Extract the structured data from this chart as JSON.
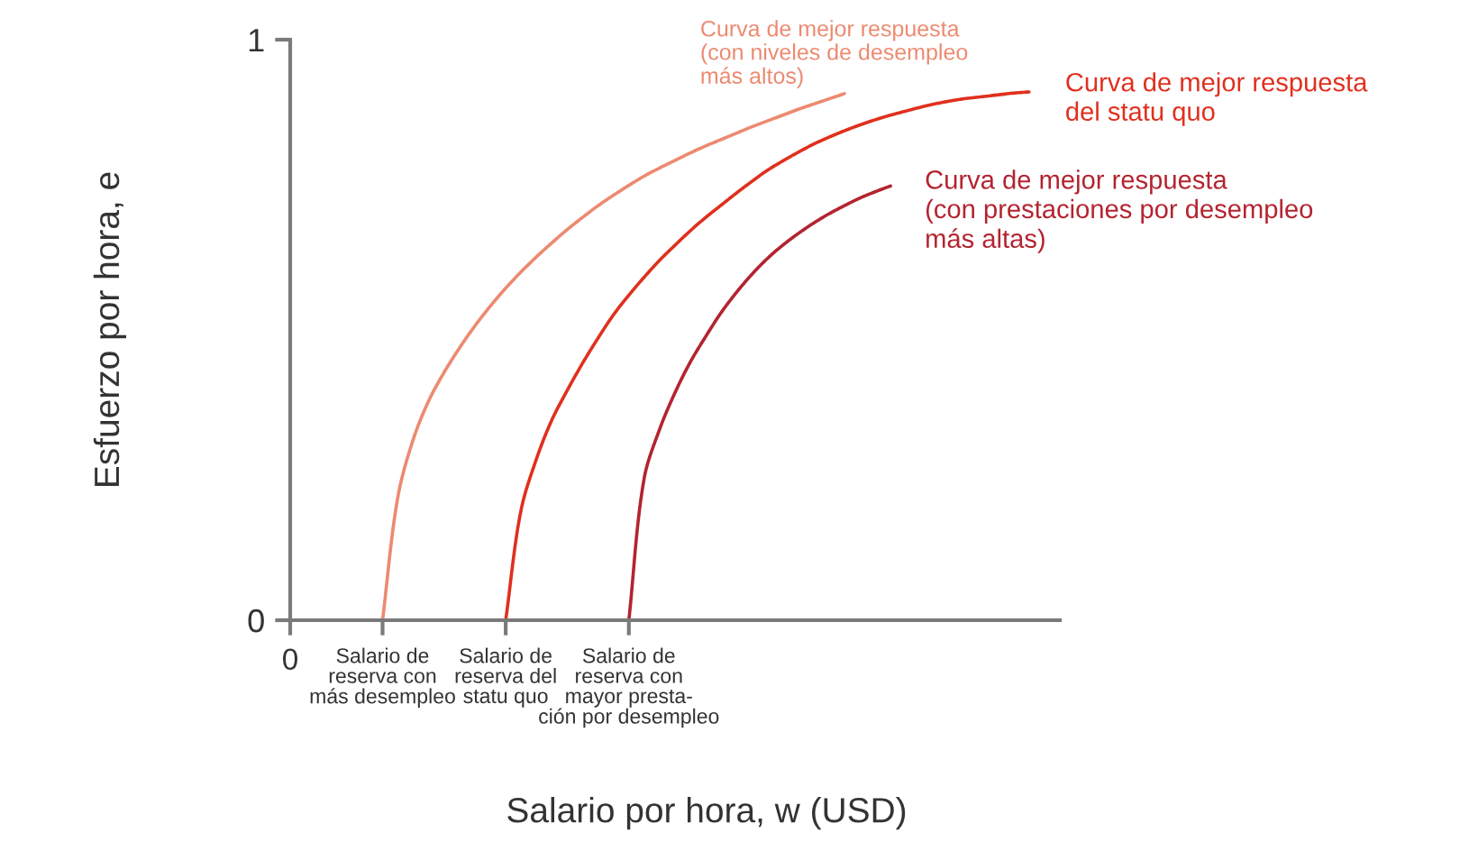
{
  "chart_data": {
    "type": "line",
    "xlabel": "Salario por hora, w (USD)",
    "ylabel": "Esfuerzo por hora, e",
    "categories": [
      "0",
      null,
      null,
      null,
      null,
      null,
      "Salario de\nreserva con\nmás desempleo",
      null,
      null,
      null,
      null,
      null,
      null,
      null,
      "Salario de\nreserva del\nstatu quo",
      null,
      null,
      null,
      null,
      null,
      null,
      null,
      "Salario de\nreserva con\nmayor presta-\nción por desempleo",
      null,
      null,
      null,
      null,
      null,
      null,
      null,
      null,
      null,
      null,
      null,
      null,
      null,
      null,
      null,
      null,
      null,
      null,
      null,
      null,
      null,
      null,
      null,
      null,
      null,
      null,
      null,
      null
    ],
    "ylim": [
      0,
      1
    ],
    "yticks": [
      0,
      1
    ],
    "series": [
      {
        "name": "Curva de mejor respuesta\n(con niveles de desempleo\nmás altos)",
        "color": "#ec8a70",
        "values": [
          null,
          null,
          null,
          null,
          null,
          null,
          0,
          0.213,
          0.312,
          0.378,
          0.427,
          0.469,
          0.507,
          0.541,
          0.572,
          0.6,
          0.626,
          0.65,
          0.673,
          0.694,
          0.714,
          0.732,
          0.749,
          0.765,
          0.779,
          0.792,
          0.805,
          0.817,
          0.828,
          0.839,
          0.85,
          0.86,
          0.87,
          0.88,
          0.889,
          0.898,
          0.907,
          null,
          null,
          null,
          null,
          null,
          null,
          null,
          null,
          null,
          null,
          null,
          null,
          null,
          null
        ]
      },
      {
        "name": "Curva de mejor respuesta\ndel statu quo",
        "color": "#e0301e",
        "values": [
          null,
          null,
          null,
          null,
          null,
          null,
          null,
          null,
          null,
          null,
          null,
          null,
          null,
          null,
          0,
          0.19,
          0.278,
          0.345,
          0.396,
          0.443,
          0.486,
          0.526,
          0.56,
          0.591,
          0.62,
          0.646,
          0.671,
          0.694,
          0.715,
          0.736,
          0.756,
          0.775,
          0.791,
          0.806,
          0.82,
          0.832,
          0.843,
          0.853,
          0.862,
          0.87,
          0.877,
          0.884,
          0.89,
          0.895,
          0.899,
          0.902,
          0.905,
          0.908,
          0.91,
          null,
          null
        ]
      },
      {
        "name": "Curva de mejor respuesta\n(con prestaciones por desempleo\nmás altas)",
        "color": "#b32430",
        "values": [
          null,
          null,
          null,
          null,
          null,
          null,
          null,
          null,
          null,
          null,
          null,
          null,
          null,
          null,
          null,
          null,
          null,
          null,
          null,
          null,
          null,
          null,
          0,
          0.245,
          0.329,
          0.392,
          0.445,
          0.489,
          0.53,
          0.565,
          0.596,
          0.623,
          0.646,
          0.666,
          0.684,
          0.7,
          0.714,
          0.727,
          0.738,
          0.748,
          null,
          null,
          null,
          null,
          null,
          null,
          null,
          null,
          null,
          null,
          null
        ]
      }
    ]
  }
}
